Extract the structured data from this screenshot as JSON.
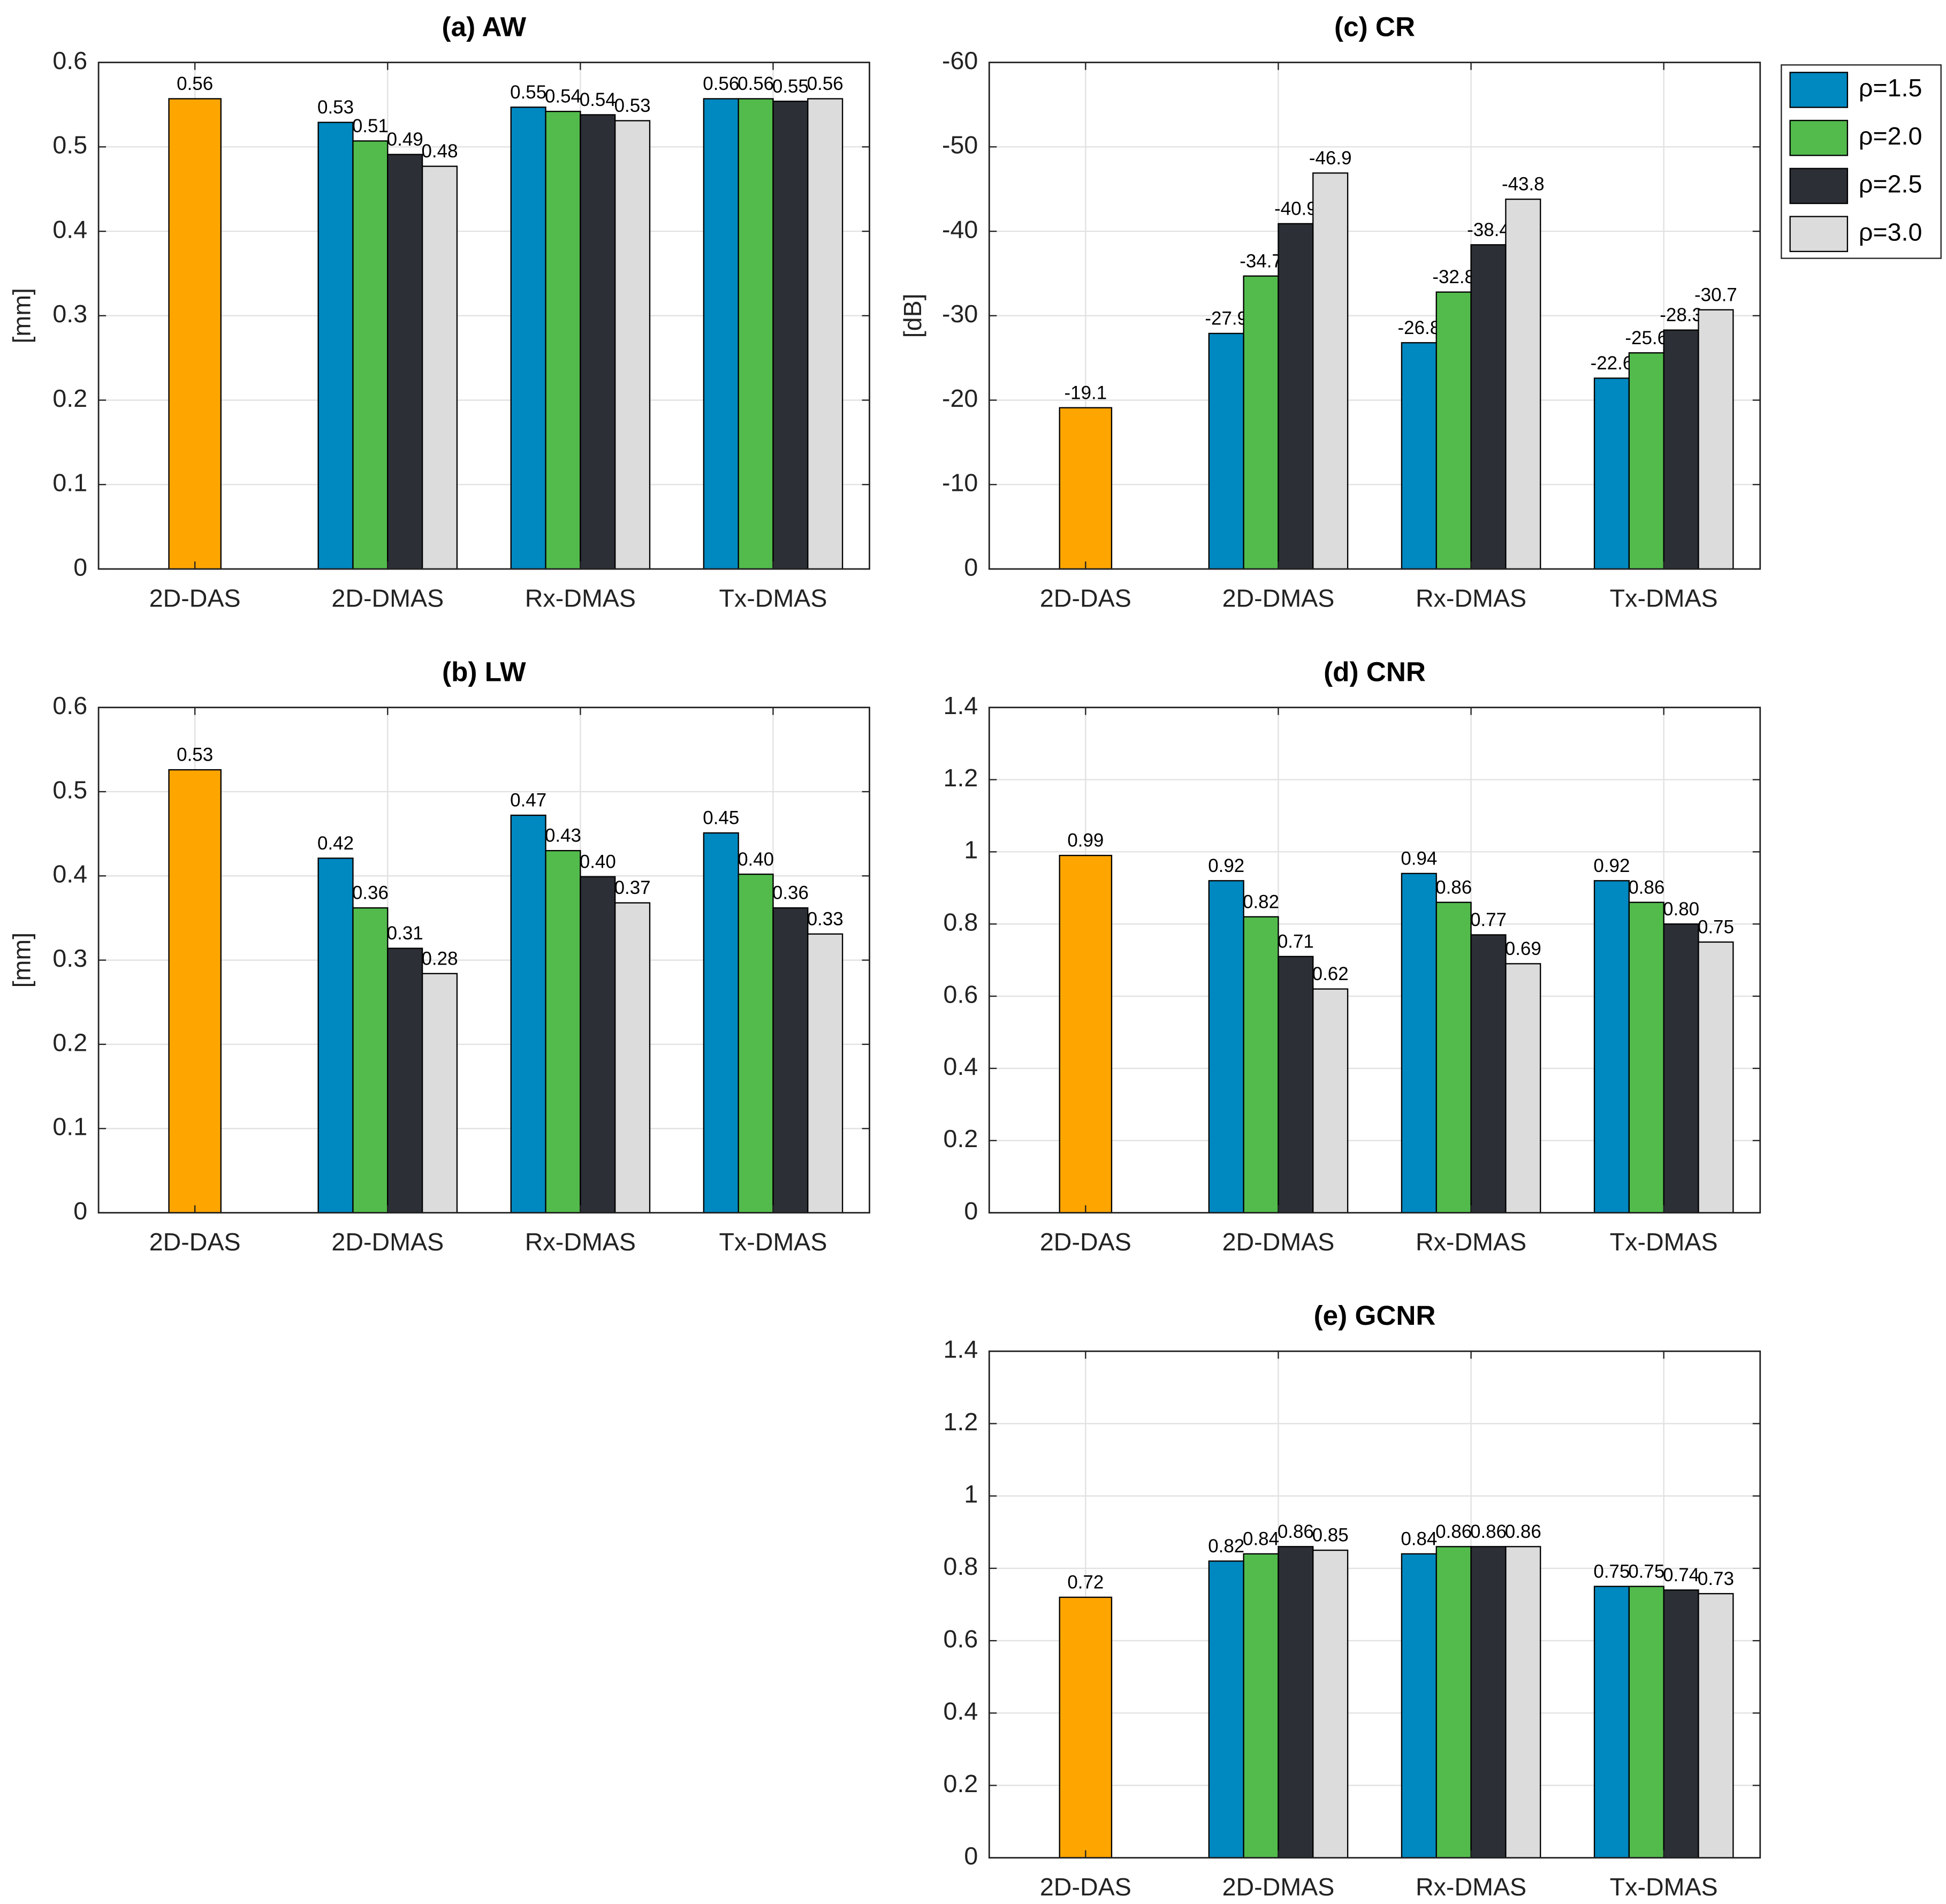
{
  "chart_data": [
    {
      "type": "bar",
      "title": "(a) AW",
      "ylabel": "[mm]",
      "categories": [
        "2D-DAS",
        "2D-DMAS",
        "Rx-DMAS",
        "Tx-DMAS"
      ],
      "ylim": [
        0,
        0.6
      ],
      "yticks": [
        0,
        0.1,
        0.2,
        0.3,
        0.4,
        0.5,
        0.6
      ],
      "grid": true,
      "series": [
        {
          "color": "#ffa500",
          "values": [
            0.557,
            null,
            null,
            null
          ],
          "value_labels": [
            "0.56",
            null,
            null,
            null
          ]
        },
        {
          "color": "#0088c0",
          "values": [
            null,
            0.529,
            0.547,
            0.557
          ],
          "value_labels": [
            null,
            "0.53",
            "0.55",
            "0.56"
          ]
        },
        {
          "color": "#52bb4c",
          "values": [
            null,
            0.507,
            0.542,
            0.557
          ],
          "value_labels": [
            null,
            "0.51",
            "0.54",
            "0.56"
          ]
        },
        {
          "color": "#2c2f36",
          "values": [
            null,
            0.491,
            0.538,
            0.554
          ],
          "value_labels": [
            null,
            "0.49",
            "0.54",
            "0.55"
          ]
        },
        {
          "color": "#dcdcdc",
          "values": [
            null,
            0.477,
            0.531,
            0.557
          ],
          "value_labels": [
            null,
            "0.48",
            "0.53",
            "0.56"
          ]
        }
      ]
    },
    {
      "type": "bar",
      "title": "(b) LW",
      "ylabel": "[mm]",
      "categories": [
        "2D-DAS",
        "2D-DMAS",
        "Rx-DMAS",
        "Tx-DMAS"
      ],
      "ylim": [
        0,
        0.6
      ],
      "yticks": [
        0,
        0.1,
        0.2,
        0.3,
        0.4,
        0.5,
        0.6
      ],
      "grid": true,
      "series": [
        {
          "color": "#ffa500",
          "values": [
            0.526,
            null,
            null,
            null
          ],
          "value_labels": [
            "0.53",
            null,
            null,
            null
          ]
        },
        {
          "color": "#0088c0",
          "values": [
            null,
            0.421,
            0.472,
            0.451
          ],
          "value_labels": [
            null,
            "0.42",
            "0.47",
            "0.45"
          ]
        },
        {
          "color": "#52bb4c",
          "values": [
            null,
            0.362,
            0.43,
            0.402
          ],
          "value_labels": [
            null,
            "0.36",
            "0.43",
            "0.40"
          ]
        },
        {
          "color": "#2c2f36",
          "values": [
            null,
            0.314,
            0.399,
            0.362
          ],
          "value_labels": [
            null,
            "0.31",
            "0.40",
            "0.36"
          ]
        },
        {
          "color": "#dcdcdc",
          "values": [
            null,
            0.284,
            0.368,
            0.331
          ],
          "value_labels": [
            null,
            "0.28",
            "0.37",
            "0.33"
          ]
        }
      ]
    },
    {
      "type": "bar",
      "title": "(c) CR",
      "ylabel": "[dB]",
      "legend": "outside-right",
      "categories": [
        "2D-DAS",
        "2D-DMAS",
        "Rx-DMAS",
        "Tx-DMAS"
      ],
      "ylim": [
        0,
        -60
      ],
      "yticks": [
        0,
        -10,
        -20,
        -30,
        -40,
        -50,
        -60
      ],
      "grid": true,
      "series": [
        {
          "color": "#ffa500",
          "values": [
            -19.1,
            null,
            null,
            null
          ]
        },
        {
          "name": "ρ=1.5",
          "color": "#0088c0",
          "values": [
            null,
            -27.9,
            -26.8,
            -22.6
          ]
        },
        {
          "name": "ρ=2.0",
          "color": "#52bb4c",
          "values": [
            null,
            -34.7,
            -32.8,
            -25.6
          ]
        },
        {
          "name": "ρ=2.5",
          "color": "#2c2f36",
          "values": [
            null,
            -40.9,
            -38.4,
            -28.3
          ]
        },
        {
          "name": "ρ=3.0",
          "color": "#dcdcdc",
          "values": [
            null,
            -46.9,
            -43.8,
            -30.7
          ]
        }
      ]
    },
    {
      "type": "bar",
      "title": "(d) CNR",
      "categories": [
        "2D-DAS",
        "2D-DMAS",
        "Rx-DMAS",
        "Tx-DMAS"
      ],
      "ylim": [
        0,
        1.4
      ],
      "yticks": [
        0,
        0.2,
        0.4,
        0.6,
        0.8,
        1,
        1.2,
        1.4
      ],
      "grid": true,
      "series": [
        {
          "color": "#ffa500",
          "values": [
            0.99,
            null,
            null,
            null
          ],
          "value_labels": [
            "0.99",
            null,
            null,
            null
          ]
        },
        {
          "color": "#0088c0",
          "values": [
            null,
            0.92,
            0.94,
            0.92
          ],
          "value_labels": [
            null,
            "0.92",
            "0.94",
            "0.92"
          ]
        },
        {
          "color": "#52bb4c",
          "values": [
            null,
            0.82,
            0.86,
            0.86
          ],
          "value_labels": [
            null,
            "0.82",
            "0.86",
            "0.86"
          ]
        },
        {
          "color": "#2c2f36",
          "values": [
            null,
            0.71,
            0.77,
            0.8
          ],
          "value_labels": [
            null,
            "0.71",
            "0.77",
            "0.80"
          ]
        },
        {
          "color": "#dcdcdc",
          "values": [
            null,
            0.62,
            0.69,
            0.75
          ],
          "value_labels": [
            null,
            "0.62",
            "0.69",
            "0.75"
          ]
        }
      ]
    },
    {
      "type": "bar",
      "title": "(e) GCNR",
      "categories": [
        "2D-DAS",
        "2D-DMAS",
        "Rx-DMAS",
        "Tx-DMAS"
      ],
      "ylim": [
        0,
        1.4
      ],
      "yticks": [
        0,
        0.2,
        0.4,
        0.6,
        0.8,
        1,
        1.2,
        1.4
      ],
      "grid": true,
      "series": [
        {
          "color": "#ffa500",
          "values": [
            0.72,
            null,
            null,
            null
          ],
          "value_labels": [
            "0.72",
            null,
            null,
            null
          ]
        },
        {
          "color": "#0088c0",
          "values": [
            null,
            0.82,
            0.84,
            0.75
          ],
          "value_labels": [
            null,
            "0.82",
            "0.84",
            "0.75"
          ]
        },
        {
          "color": "#52bb4c",
          "values": [
            null,
            0.84,
            0.86,
            0.75
          ],
          "value_labels": [
            null,
            "0.84",
            "0.86",
            "0.75"
          ]
        },
        {
          "color": "#2c2f36",
          "values": [
            null,
            0.86,
            0.86,
            0.74
          ],
          "value_labels": [
            null,
            "0.86",
            "0.86",
            "0.74"
          ]
        },
        {
          "color": "#dcdcdc",
          "values": [
            null,
            0.85,
            0.86,
            0.73
          ],
          "value_labels": [
            null,
            "0.85",
            "0.86",
            "0.73"
          ]
        }
      ]
    }
  ]
}
